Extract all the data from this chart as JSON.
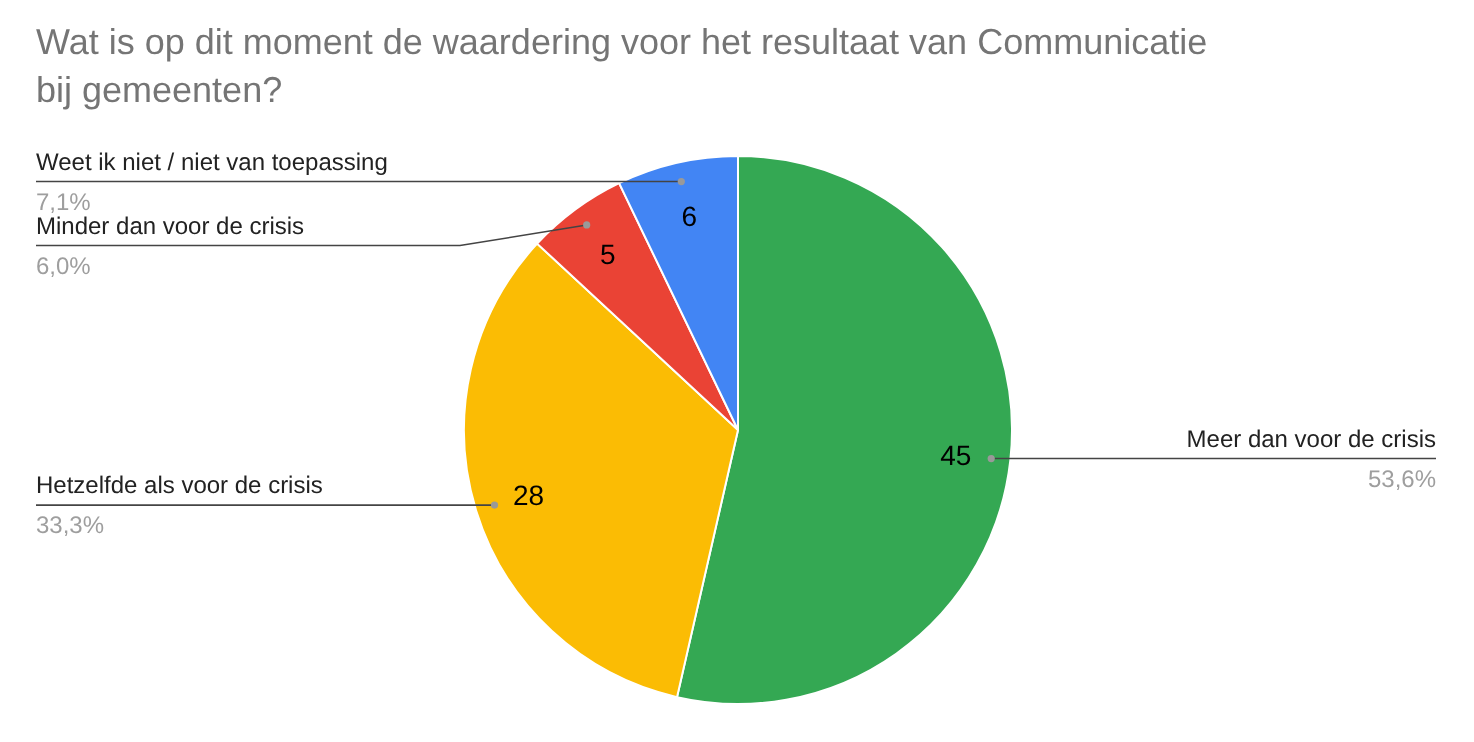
{
  "chart_data": {
    "type": "pie",
    "title": "Wat is op dit moment de waardering voor het resultaat van Communicatie bij gemeenten?",
    "categories": [
      "Meer dan voor de crisis",
      "Hetzelfde als voor de crisis",
      "Minder dan voor de crisis",
      "Weet ik niet / niet van toepassing"
    ],
    "values": [
      45,
      28,
      5,
      6
    ],
    "colors": [
      "#34a853",
      "#fbbc04",
      "#ea4335",
      "#4285f4"
    ],
    "annotations": [
      "53,6%",
      "33,3%",
      "6,0%",
      "7,1%"
    ],
    "data_labels": true
  }
}
